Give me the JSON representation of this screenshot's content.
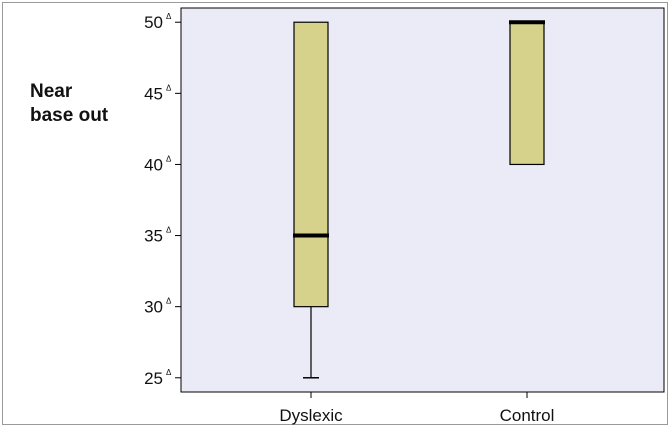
{
  "chart_data": {
    "type": "box",
    "ylabel_lines": [
      "Near",
      "base out"
    ],
    "y_ticks": [
      25,
      30,
      35,
      40,
      45,
      50
    ],
    "tick_suffix": "Δ",
    "ylim": [
      24,
      51
    ],
    "categories": [
      "Dyslexic",
      "Control"
    ],
    "boxes": [
      {
        "category": "Dyslexic",
        "whisker_low": 25,
        "q1": 30,
        "median": 35,
        "q3": 50,
        "whisker_high": 50
      },
      {
        "category": "Control",
        "whisker_low": 40,
        "q1": 40,
        "median": 50,
        "q3": 50,
        "whisker_high": 50
      }
    ],
    "colors": {
      "plot_background": "#ebebf7",
      "box_fill": "#d6d28c",
      "box_stroke": "#000000",
      "median": "#000000"
    }
  }
}
